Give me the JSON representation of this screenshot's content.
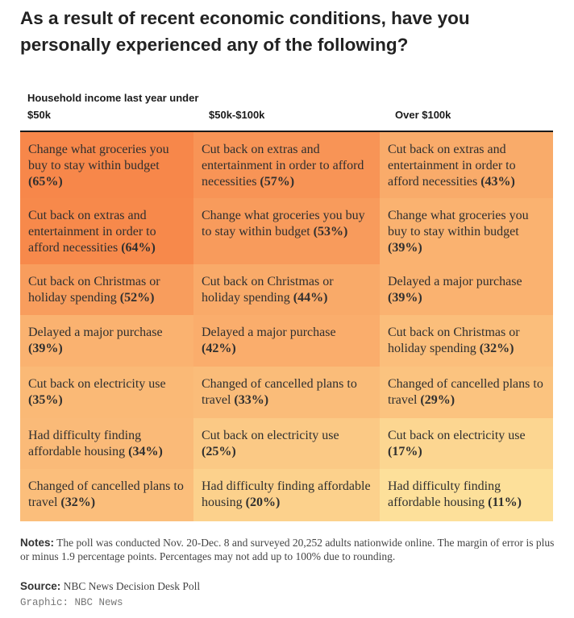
{
  "title": "As a result of recent economic conditions, have you personally experienced any of the following?",
  "columns": [
    "Household income last year under $50k",
    "$50k-$100k",
    "Over $100k"
  ],
  "colors": {
    "scale_low": "#fde29b",
    "scale_high": "#f7874a",
    "rule": "#1a1a1a"
  },
  "chart_data": {
    "type": "table",
    "columns": [
      "Household income last year under $50k",
      "$50k-$100k",
      "Over $100k"
    ],
    "rows": [
      [
        {
          "text": "Change what groceries you buy to stay within budget",
          "pct": 65
        },
        {
          "text": "Cut back on extras and entertainment in order to afford necessities",
          "pct": 57
        },
        {
          "text": "Cut back on extras and entertainment in order to afford necessities",
          "pct": 43
        }
      ],
      [
        {
          "text": "Cut back on extras and entertainment in order to afford necessities",
          "pct": 64
        },
        {
          "text": "Change what groceries you buy to stay within budget",
          "pct": 53
        },
        {
          "text": "Change what groceries you buy to stay within budget",
          "pct": 39
        }
      ],
      [
        {
          "text": "Cut back on Christmas or holiday spending",
          "pct": 52
        },
        {
          "text": "Cut back on Christmas or holiday spending",
          "pct": 44
        },
        {
          "text": "Delayed a major purchase",
          "pct": 39
        }
      ],
      [
        {
          "text": "Delayed a major purchase",
          "pct": 39
        },
        {
          "text": "Delayed a major purchase",
          "pct": 42
        },
        {
          "text": "Cut back on Christmas or holiday spending",
          "pct": 32
        }
      ],
      [
        {
          "text": "Cut back on electricity use",
          "pct": 35
        },
        {
          "text": "Changed of cancelled plans to travel",
          "pct": 33
        },
        {
          "text": "Changed of cancelled plans to travel",
          "pct": 29
        }
      ],
      [
        {
          "text": "Had difficulty finding affordable housing",
          "pct": 34
        },
        {
          "text": "Cut back on electricity use",
          "pct": 25
        },
        {
          "text": "Cut back on electricity use",
          "pct": 17
        }
      ],
      [
        {
          "text": "Changed of cancelled plans to travel",
          "pct": 32
        },
        {
          "text": "Had difficulty finding affordable housing",
          "pct": 20
        },
        {
          "text": "Had difficulty finding affordable housing",
          "pct": 11
        }
      ]
    ]
  },
  "notes": {
    "label": "Notes:",
    "text": "The poll was conducted Nov. 20-Dec. 8 and surveyed 20,252 adults nationwide online. The margin of error is plus or minus 1.9 percentage points. Percentages may not add up to 100% due to rounding."
  },
  "source": {
    "label": "Source:",
    "text": "NBC News Decision Desk Poll"
  },
  "credit": "Graphic: NBC News"
}
